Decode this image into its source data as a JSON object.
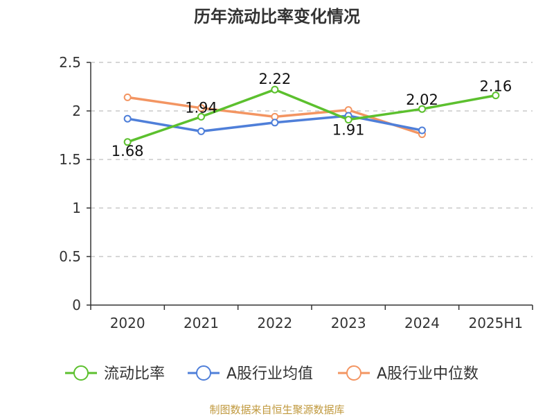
{
  "chart_data": {
    "type": "line",
    "title": "历年流动比率变化情况",
    "xlabel": "",
    "ylabel": "",
    "categories": [
      "2020",
      "2021",
      "2022",
      "2023",
      "2024",
      "2025H1"
    ],
    "ylim": [
      0,
      2.5
    ],
    "yticks": [
      "0",
      "0.5",
      "1",
      "1.5",
      "2",
      "2.5"
    ],
    "ytick_values": [
      0,
      0.5,
      1,
      1.5,
      2,
      2.5
    ],
    "grid": true,
    "legend_position": "bottom",
    "series": [
      {
        "name": "流动比率",
        "color": "#5cc02e",
        "values": [
          1.68,
          1.94,
          2.22,
          1.91,
          2.02,
          2.16
        ],
        "labels": [
          "1.68",
          "1.94",
          "2.22",
          "1.91",
          "2.02",
          "2.16"
        ]
      },
      {
        "name": "A股行业均值",
        "color": "#4f7fd9",
        "values": [
          1.92,
          1.79,
          1.88,
          1.95,
          1.8,
          null
        ]
      },
      {
        "name": "A股行业中位数",
        "color": "#f39562",
        "values": [
          2.14,
          2.03,
          1.94,
          2.01,
          1.76,
          null
        ]
      }
    ],
    "source_note": "制图数据来自恒生聚源数据库"
  }
}
